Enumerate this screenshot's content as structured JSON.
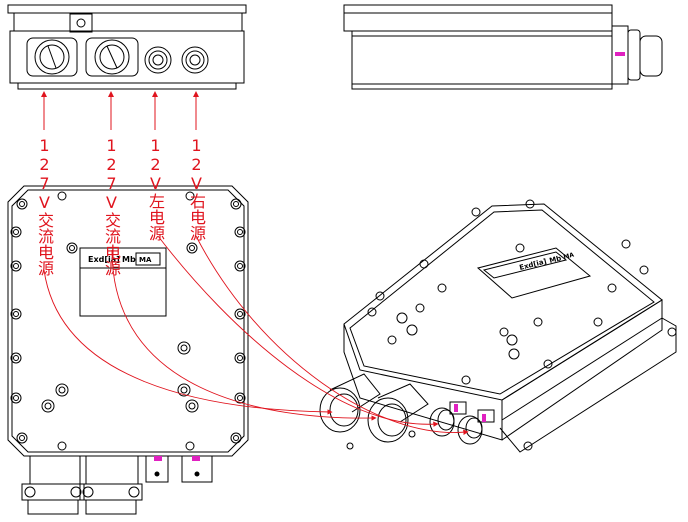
{
  "labels": {
    "ac1": "127V交流电源",
    "ac2": "127V交流电源",
    "left12": "12V左电源",
    "right12": "12V右电源"
  },
  "nameplate": {
    "exd": "Exd[ia]",
    "mb": "Mb",
    "mark": "MA"
  },
  "colors": {
    "annotation": "#e0141e",
    "line": "#000000",
    "marker": "#e020c0"
  },
  "icons": [
    "cable-gland-icon",
    "connector-icon",
    "bolt-icon"
  ]
}
